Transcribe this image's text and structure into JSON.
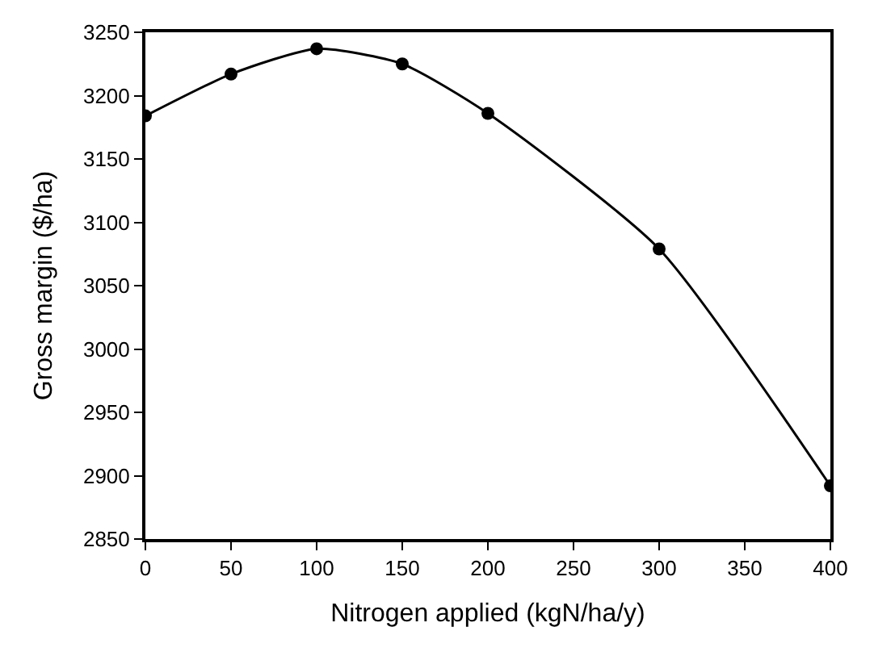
{
  "chart_data": {
    "type": "line",
    "xlabel": "Nitrogen applied (kgN/ha/y)",
    "ylabel": "Gross margin ($/ha)",
    "x": [
      0,
      50,
      100,
      150,
      200,
      300,
      400
    ],
    "series": [
      {
        "color": "#000000",
        "values": [
          3184,
          3217,
          3237,
          3225,
          3186,
          3079,
          2892
        ]
      }
    ],
    "xlim": [
      0,
      400
    ],
    "xticks": [
      0,
      50,
      100,
      150,
      200,
      250,
      300,
      350,
      400
    ],
    "ylim": [
      2850,
      3250
    ],
    "yticks": [
      2850,
      2900,
      2950,
      3000,
      3050,
      3100,
      3150,
      3200,
      3250
    ],
    "marker": "circle",
    "line_style": "solid"
  }
}
